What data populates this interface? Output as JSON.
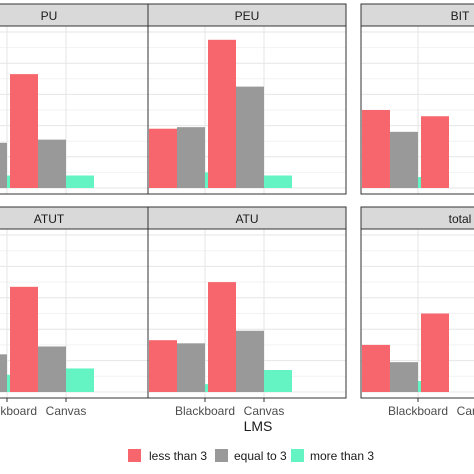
{
  "chart_data": {
    "type": "bar",
    "xlabel": "LMS",
    "categories": [
      "Blackboard",
      "Canvas"
    ],
    "grid": true,
    "legend_position": "bottom",
    "series": [
      {
        "name": "less than 3",
        "color": "#F8666D"
      },
      {
        "name": "equal to 3",
        "color": "#999999"
      },
      {
        "name": "more than 3",
        "color": "#64F3C2"
      }
    ],
    "ylim": [
      0,
      1
    ],
    "panels": [
      {
        "title": "PU",
        "values": {
          "Blackboard": [
            null,
            0.29,
            0.08
          ],
          "Canvas": [
            0.73,
            0.31,
            0.08
          ]
        }
      },
      {
        "title": "PEU",
        "values": {
          "Blackboard": [
            0.38,
            0.39,
            0.1
          ],
          "Canvas": [
            0.95,
            0.65,
            0.08
          ]
        }
      },
      {
        "title": "BIT",
        "values": {
          "Blackboard": [
            0.5,
            0.36,
            0.07
          ],
          "Canvas": [
            0.46,
            null,
            null
          ]
        }
      },
      {
        "title": "ATUT",
        "values": {
          "Blackboard": [
            null,
            0.24,
            0.11
          ],
          "Canvas": [
            0.67,
            0.29,
            0.15
          ]
        }
      },
      {
        "title": "ATU",
        "values": {
          "Blackboard": [
            0.33,
            0.31,
            0.05
          ],
          "Canvas": [
            0.7,
            0.39,
            0.14
          ]
        }
      },
      {
        "title": "total",
        "values": {
          "Blackboard": [
            0.3,
            0.19,
            0.07
          ],
          "Canvas": [
            0.5,
            null,
            null
          ]
        }
      }
    ]
  }
}
